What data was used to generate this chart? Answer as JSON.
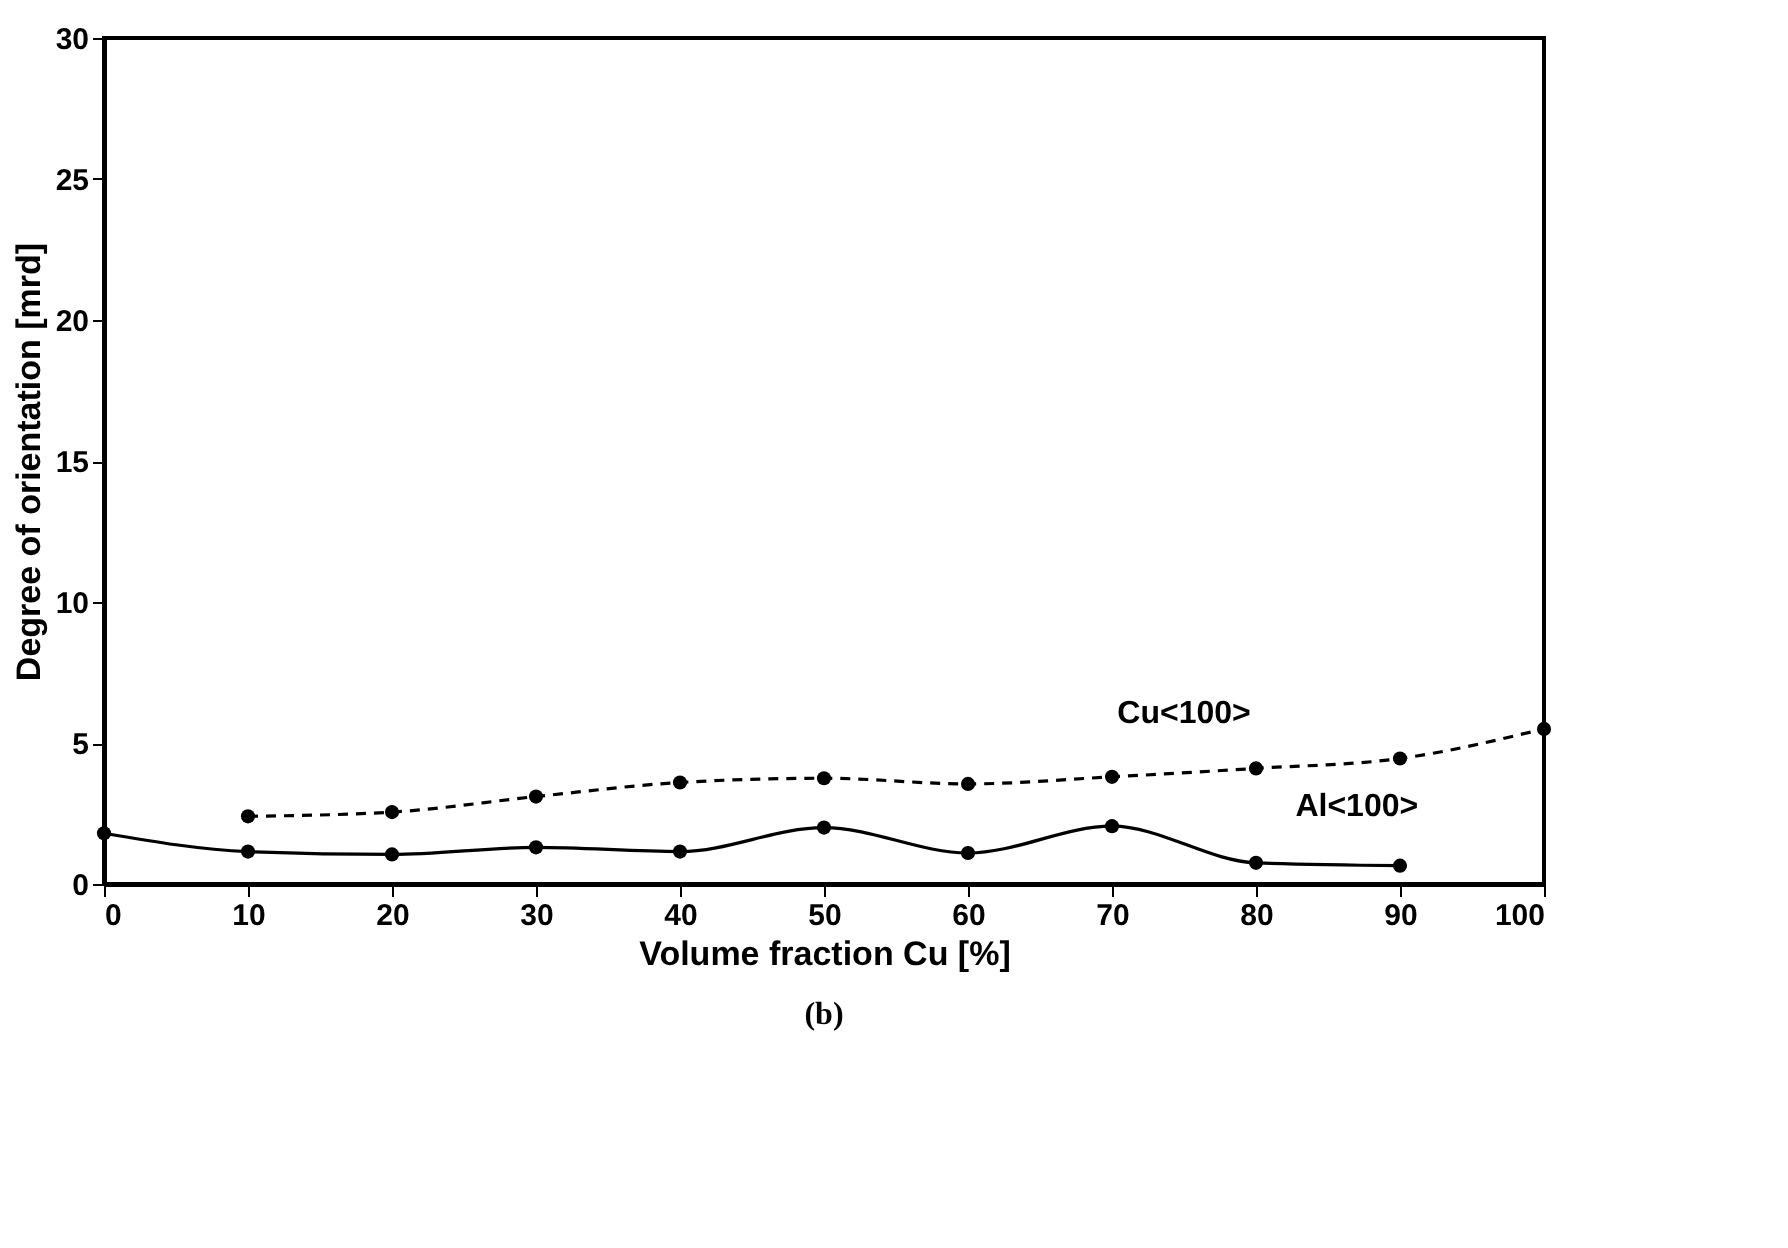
{
  "chart_data": {
    "type": "line",
    "xlabel": "Volume fraction Cu [%]",
    "ylabel": "Degree of orientation [mrd]",
    "xlim": [
      0,
      100
    ],
    "xticks": [
      0,
      10,
      20,
      30,
      40,
      50,
      60,
      70,
      80,
      90,
      100
    ],
    "ylim": [
      0,
      30
    ],
    "yticks": [
      0,
      5,
      10,
      15,
      20,
      25,
      30
    ],
    "grid": false,
    "marker": "circle",
    "series": [
      {
        "color": "#000000",
        "line_style": "dashed",
        "x": [
          10,
          20,
          30,
          40,
          50,
          60,
          70,
          80,
          90,
          100
        ],
        "values": [
          2.4,
          2.55,
          3.1,
          3.6,
          3.75,
          3.55,
          3.8,
          4.1,
          4.45,
          5.5
        ]
      },
      {
        "color": "#000000",
        "line_style": "solid",
        "x": [
          0,
          10,
          20,
          30,
          40,
          50,
          60,
          70,
          80,
          90
        ],
        "values": [
          1.8,
          1.15,
          1.05,
          1.3,
          1.15,
          2.0,
          1.1,
          2.05,
          0.75,
          0.65
        ]
      }
    ],
    "annotations": [
      {
        "text": "Cu<100>",
        "x": 75,
        "y": 3.95
      },
      {
        "text": "Al<100>",
        "x": 87,
        "y": 0.65
      },
      "(b)"
    ]
  }
}
